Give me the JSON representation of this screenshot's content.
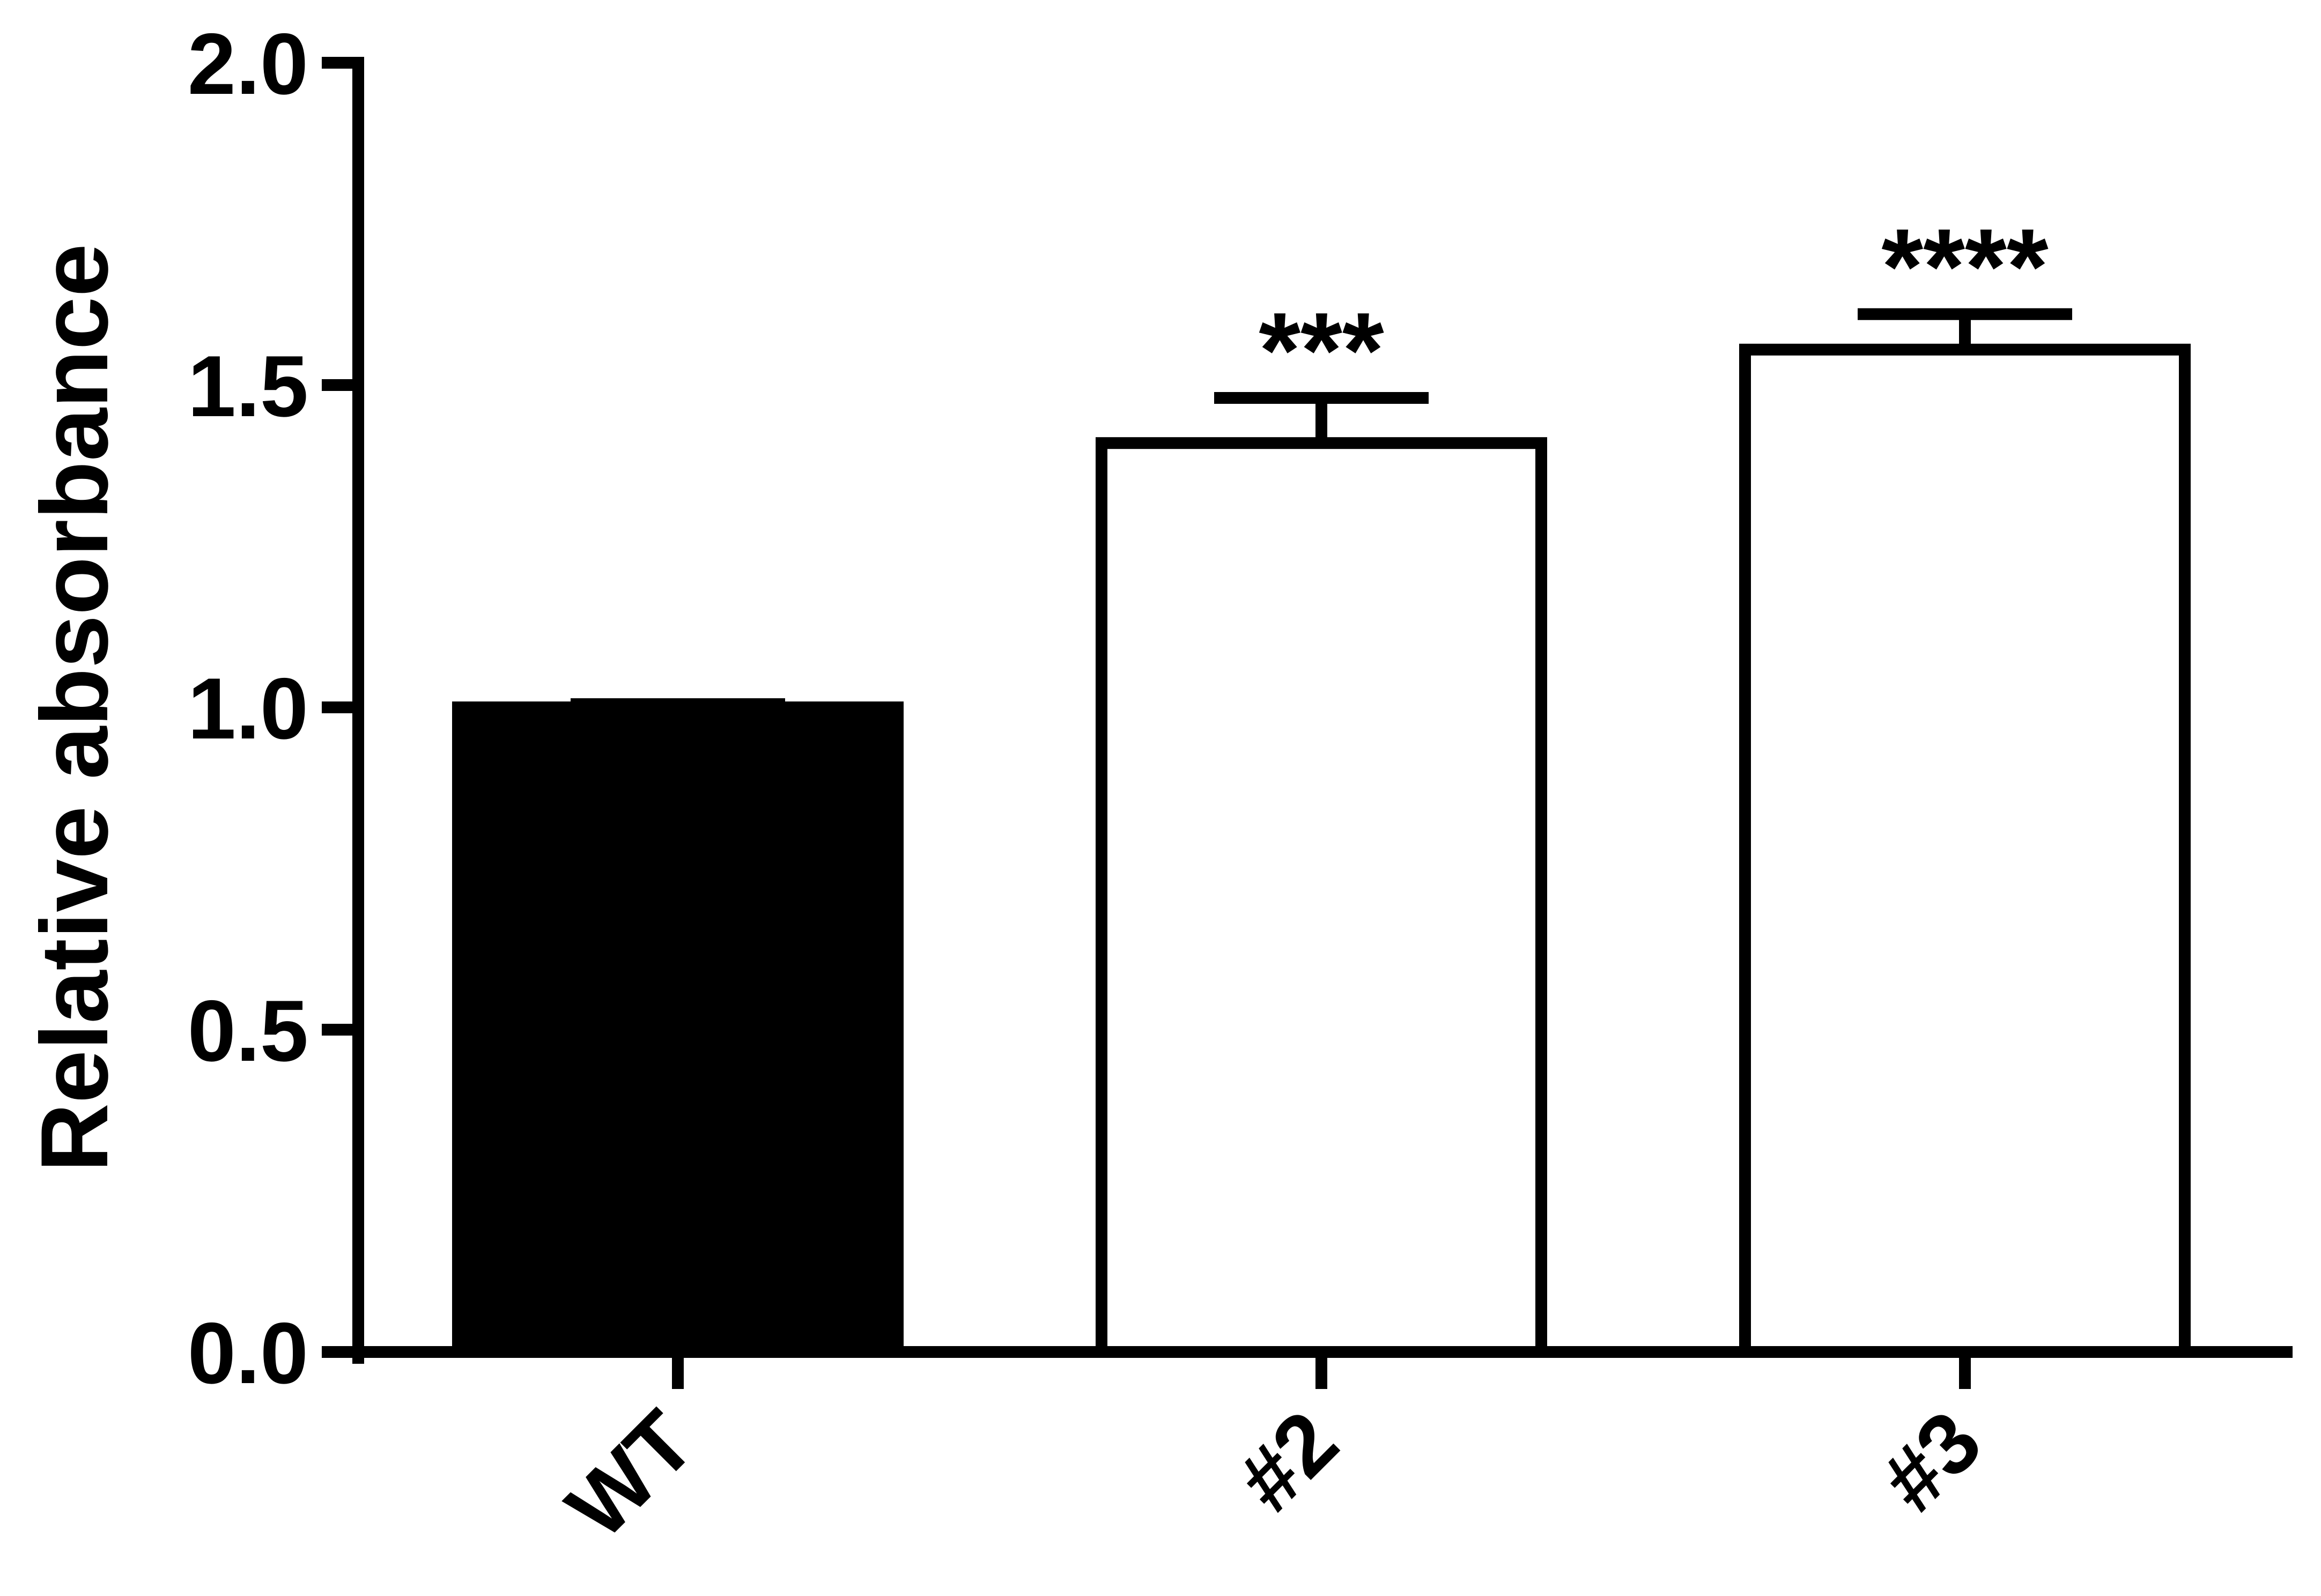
{
  "chart_data": {
    "type": "bar",
    "title": "",
    "xlabel": "",
    "ylabel": "Relative absorbance",
    "ylim": [
      0,
      2.0
    ],
    "yticks": [
      "0.0",
      "0.5",
      "1.0",
      "1.5",
      "2.0"
    ],
    "categories": [
      "WT",
      "#2",
      "#3"
    ],
    "values": [
      1.0,
      1.41,
      1.555
    ],
    "errors": [
      0.005,
      0.07,
      0.055
    ],
    "significance": [
      "",
      "***",
      "****"
    ],
    "bar_fills": [
      "#000000",
      "#ffffff",
      "#ffffff"
    ],
    "bar_stroke": "#000000",
    "grid": false,
    "legend": "none"
  }
}
